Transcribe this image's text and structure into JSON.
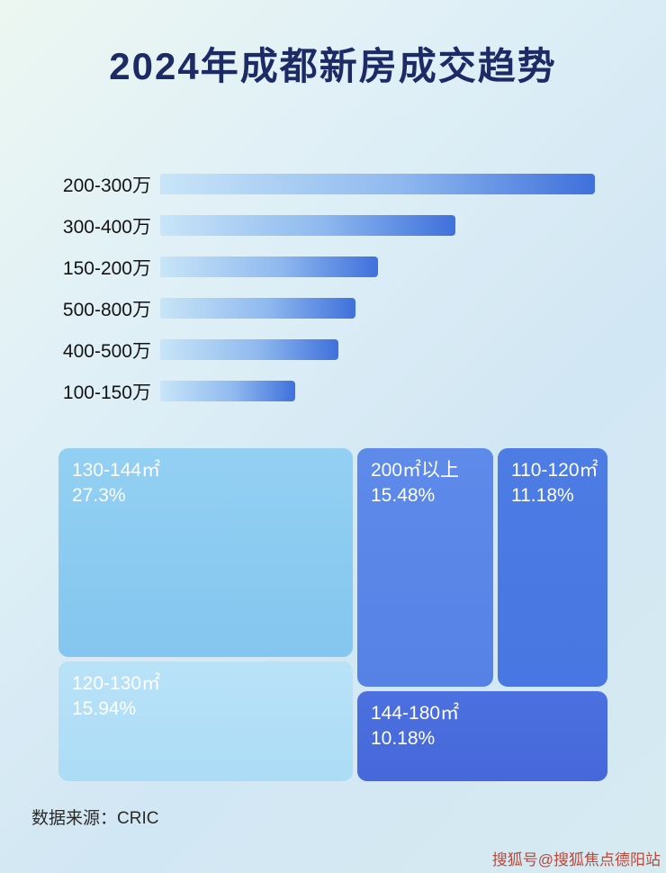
{
  "page": {
    "title": "2024年成都新房成交趋势"
  },
  "bar_chart": {
    "rows": [
      {
        "label": "200-300万",
        "value": 100
      },
      {
        "label": "300-400万",
        "value": 68
      },
      {
        "label": "150-200万",
        "value": 50
      },
      {
        "label": "500-800万",
        "value": 45
      },
      {
        "label": "400-500万",
        "value": 41
      },
      {
        "label": "100-150万",
        "value": 31
      }
    ]
  },
  "treemap": {
    "blocks": [
      {
        "label": "130-144㎡",
        "percent": "27.3%"
      },
      {
        "label": "200㎡以上",
        "percent": "15.48%"
      },
      {
        "label": "110-120㎡",
        "percent": "11.18%"
      },
      {
        "label": "120-130㎡",
        "percent": "15.94%"
      },
      {
        "label": "144-180㎡",
        "percent": "10.18%"
      }
    ]
  },
  "footer": {
    "source_label": "数据来源：CRIC"
  },
  "watermark": {
    "text": "搜狐号@搜狐焦点德阳站"
  },
  "chart_data": [
    {
      "type": "bar",
      "orientation": "horizontal",
      "title": "2024年成都新房成交趋势",
      "categories": [
        "200-300万",
        "300-400万",
        "150-200万",
        "500-800万",
        "400-500万",
        "100-150万"
      ],
      "values": [
        100,
        68,
        50,
        45,
        41,
        31
      ],
      "value_note": "relative bar lengths as % of longest bar; no numeric data labels shown in image",
      "xlabel": "",
      "ylabel": "",
      "grid": false,
      "legend": false
    },
    {
      "type": "treemap",
      "title": "",
      "items": [
        {
          "label": "130-144㎡",
          "value": 27.3
        },
        {
          "label": "120-130㎡",
          "value": 15.94
        },
        {
          "label": "200㎡以上",
          "value": 15.48
        },
        {
          "label": "110-120㎡",
          "value": 11.18
        },
        {
          "label": "144-180㎡",
          "value": 10.18
        }
      ]
    }
  ]
}
